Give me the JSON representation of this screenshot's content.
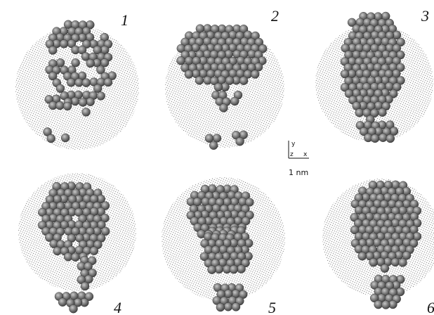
{
  "panels": [
    {
      "label": "1"
    },
    {
      "label": "2"
    },
    {
      "label": "3"
    },
    {
      "label": "4"
    },
    {
      "label": "5"
    },
    {
      "label": "6"
    }
  ],
  "axes": {
    "y": "y",
    "z": "z",
    "x": "x"
  },
  "scale_bar": "1 nm"
}
